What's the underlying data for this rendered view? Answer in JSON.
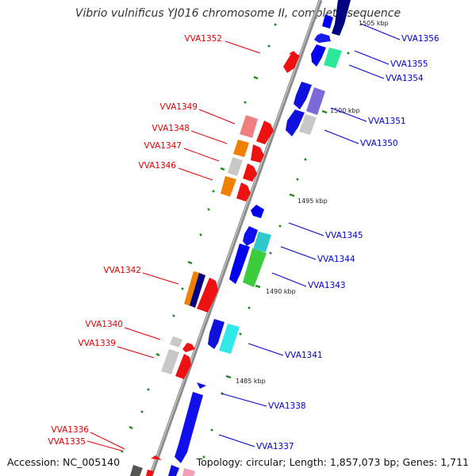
{
  "title": "Vibrio vulnificus YJ016 chromosome II, complete sequence",
  "footer": {
    "accession": "Accession: NC_005140",
    "topology": "Topology: circular; Length: 1,857,073 bp; Genes: 1,711"
  },
  "colors": {
    "backbone": "#8c8c8c",
    "reverse_label": "#dd0000",
    "forward_label": "#0000cc",
    "tick": "#1e8a1e"
  },
  "ticks": [
    "1505 kbp",
    "1500 kbp",
    "1495 kbp",
    "1490 kbp",
    "1485 kbp"
  ],
  "genes": [
    {
      "name": "VVA1356",
      "strand": "forward"
    },
    {
      "name": "VVA1355",
      "strand": "forward"
    },
    {
      "name": "VVA1354",
      "strand": "forward"
    },
    {
      "name": "VVA1352",
      "strand": "reverse"
    },
    {
      "name": "VVA1351",
      "strand": "forward"
    },
    {
      "name": "VVA1350",
      "strand": "forward"
    },
    {
      "name": "VVA1349",
      "strand": "reverse"
    },
    {
      "name": "VVA1348",
      "strand": "reverse"
    },
    {
      "name": "VVA1347",
      "strand": "reverse"
    },
    {
      "name": "VVA1346",
      "strand": "reverse"
    },
    {
      "name": "VVA1345",
      "strand": "forward"
    },
    {
      "name": "VVA1344",
      "strand": "forward"
    },
    {
      "name": "VVA1343",
      "strand": "forward"
    },
    {
      "name": "VVA1342",
      "strand": "reverse"
    },
    {
      "name": "VVA1341",
      "strand": "forward"
    },
    {
      "name": "VVA1340",
      "strand": "reverse"
    },
    {
      "name": "VVA1339",
      "strand": "reverse"
    },
    {
      "name": "VVA1338",
      "strand": "forward"
    },
    {
      "name": "VVA1337",
      "strand": "forward"
    },
    {
      "name": "VVA1336",
      "strand": "reverse"
    },
    {
      "name": "VVA1335",
      "strand": "reverse"
    }
  ]
}
